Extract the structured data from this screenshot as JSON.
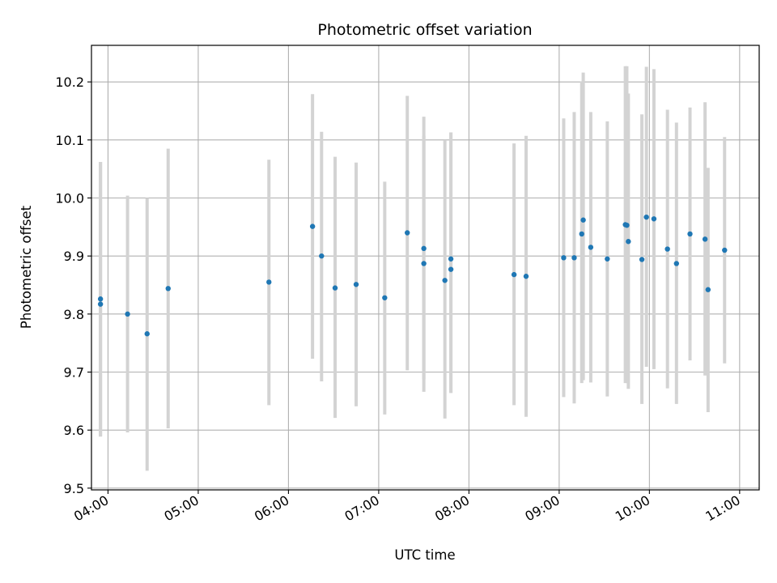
{
  "chart_data": {
    "type": "scatter",
    "title": "Photometric offset variation",
    "xlabel": "UTC time",
    "ylabel": "Photometric offset",
    "xlim": [
      "03:49",
      "11:13"
    ],
    "ylim": [
      9.497,
      10.263
    ],
    "x_ticks": [
      "04:00",
      "05:00",
      "06:00",
      "07:00",
      "08:00",
      "09:00",
      "10:00",
      "11:00"
    ],
    "y_ticks": [
      "9.5",
      "9.6",
      "9.7",
      "9.8",
      "9.9",
      "10.0",
      "10.1",
      "10.2"
    ],
    "grid": true,
    "colors": {
      "point": "#1f77b4",
      "errorbar": "#d3d3d3",
      "grid": "#b0b0b0"
    },
    "points": [
      {
        "x": "03:55",
        "y": 9.826,
        "ylo": 9.589,
        "yhi": 10.062
      },
      {
        "x": "03:55",
        "y": 9.817,
        "ylo": 9.589,
        "yhi": 10.062
      },
      {
        "x": "04:13",
        "y": 9.8,
        "ylo": 9.596,
        "yhi": 10.004
      },
      {
        "x": "04:26",
        "y": 9.766,
        "ylo": 9.53,
        "yhi": 10.0
      },
      {
        "x": "04:40",
        "y": 9.844,
        "ylo": 9.603,
        "yhi": 10.085
      },
      {
        "x": "05:47",
        "y": 9.855,
        "ylo": 9.643,
        "yhi": 10.066
      },
      {
        "x": "06:16",
        "y": 9.951,
        "ylo": 9.723,
        "yhi": 10.179
      },
      {
        "x": "06:22",
        "y": 9.9,
        "ylo": 9.684,
        "yhi": 10.114
      },
      {
        "x": "06:31",
        "y": 9.845,
        "ylo": 9.621,
        "yhi": 10.071
      },
      {
        "x": "06:45",
        "y": 9.851,
        "ylo": 9.641,
        "yhi": 10.061
      },
      {
        "x": "07:04",
        "y": 9.828,
        "ylo": 9.627,
        "yhi": 10.028
      },
      {
        "x": "07:19",
        "y": 9.94,
        "ylo": 9.703,
        "yhi": 10.176
      },
      {
        "x": "07:30",
        "y": 9.913,
        "ylo": 9.688,
        "yhi": 10.14
      },
      {
        "x": "07:30",
        "y": 9.887,
        "ylo": 9.666,
        "yhi": 10.107
      },
      {
        "x": "07:44",
        "y": 9.858,
        "ylo": 9.62,
        "yhi": 10.1
      },
      {
        "x": "07:48",
        "y": 9.895,
        "ylo": 9.664,
        "yhi": 10.113
      },
      {
        "x": "07:48",
        "y": 9.877,
        "ylo": 9.664,
        "yhi": 10.113
      },
      {
        "x": "08:30",
        "y": 9.868,
        "ylo": 9.643,
        "yhi": 10.094
      },
      {
        "x": "08:38",
        "y": 9.865,
        "ylo": 9.623,
        "yhi": 10.107
      },
      {
        "x": "09:03",
        "y": 9.897,
        "ylo": 9.657,
        "yhi": 10.137
      },
      {
        "x": "09:10",
        "y": 9.897,
        "ylo": 9.646,
        "yhi": 10.148
      },
      {
        "x": "09:15",
        "y": 9.938,
        "ylo": 9.681,
        "yhi": 10.201
      },
      {
        "x": "09:16",
        "y": 9.962,
        "ylo": 9.686,
        "yhi": 10.216
      },
      {
        "x": "09:21",
        "y": 9.915,
        "ylo": 9.682,
        "yhi": 10.148
      },
      {
        "x": "09:32",
        "y": 9.895,
        "ylo": 9.658,
        "yhi": 10.132
      },
      {
        "x": "09:44",
        "y": 9.954,
        "ylo": 9.681,
        "yhi": 10.227
      },
      {
        "x": "09:45",
        "y": 9.953,
        "ylo": 9.681,
        "yhi": 10.227
      },
      {
        "x": "09:46",
        "y": 9.925,
        "ylo": 9.671,
        "yhi": 10.18
      },
      {
        "x": "09:55",
        "y": 9.894,
        "ylo": 9.645,
        "yhi": 10.144
      },
      {
        "x": "09:58",
        "y": 9.967,
        "ylo": 9.709,
        "yhi": 10.226
      },
      {
        "x": "10:03",
        "y": 9.964,
        "ylo": 9.705,
        "yhi": 10.222
      },
      {
        "x": "10:12",
        "y": 9.912,
        "ylo": 9.672,
        "yhi": 10.152
      },
      {
        "x": "10:18",
        "y": 9.887,
        "ylo": 9.645,
        "yhi": 10.13
      },
      {
        "x": "10:27",
        "y": 9.938,
        "ylo": 9.72,
        "yhi": 10.156
      },
      {
        "x": "10:37",
        "y": 9.929,
        "ylo": 9.694,
        "yhi": 10.165
      },
      {
        "x": "10:39",
        "y": 9.842,
        "ylo": 9.631,
        "yhi": 10.052
      },
      {
        "x": "10:50",
        "y": 9.91,
        "ylo": 9.715,
        "yhi": 10.105
      }
    ]
  }
}
